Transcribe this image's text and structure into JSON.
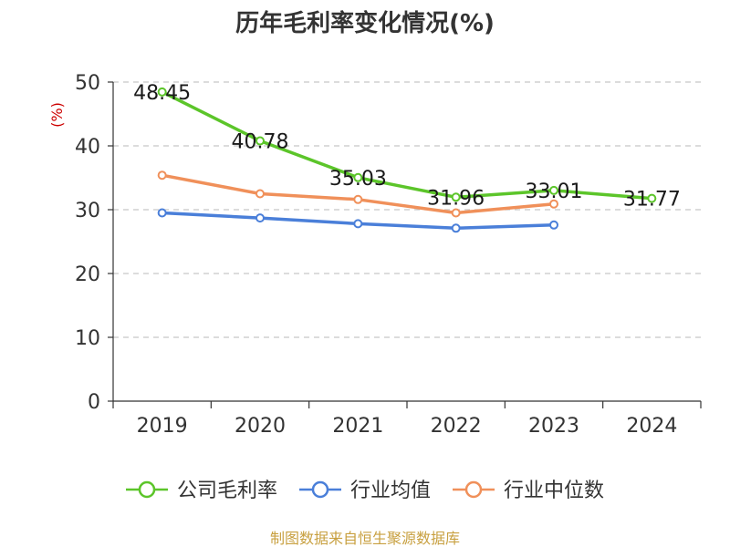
{
  "chart_data": {
    "type": "line",
    "title": "历年毛利率变化情况(%)",
    "ylabel": "(%)",
    "xlabel": "",
    "categories": [
      "2019",
      "2020",
      "2021",
      "2022",
      "2023",
      "2024"
    ],
    "ylim": [
      0,
      50
    ],
    "yticks": [
      0,
      10,
      20,
      30,
      40,
      50
    ],
    "grid": true,
    "legend_position": "bottom",
    "series": [
      {
        "name": "公司毛利率",
        "color": "#5cc52a",
        "values": [
          48.45,
          40.78,
          35.03,
          31.96,
          33.01,
          31.77
        ],
        "show_labels": true
      },
      {
        "name": "行业均值",
        "color": "#4a7fd9",
        "values": [
          29.5,
          28.7,
          27.8,
          27.1,
          27.6,
          null
        ],
        "show_labels": false
      },
      {
        "name": "行业中位数",
        "color": "#f0905a",
        "values": [
          35.4,
          32.5,
          31.6,
          29.5,
          30.9,
          null
        ],
        "show_labels": false
      }
    ]
  },
  "source": "制图数据来自恒生聚源数据库"
}
